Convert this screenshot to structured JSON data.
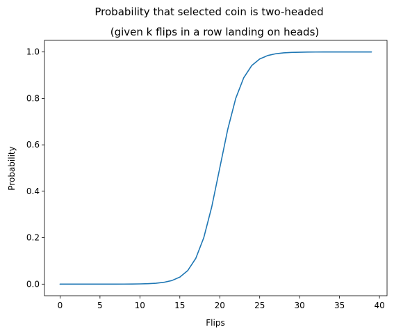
{
  "chart_data": {
    "type": "line",
    "title": "Probability that selected coin is two-headed",
    "subtitle": "(given k flips in a row landing on heads)",
    "xlabel": "Flips",
    "ylabel": "Probability",
    "xlim": [
      -1.95,
      40.95
    ],
    "ylim": [
      -0.05,
      1.05
    ],
    "xticks": [
      0,
      5,
      10,
      15,
      20,
      25,
      30,
      35,
      40
    ],
    "yticks": [
      0.0,
      0.2,
      0.4,
      0.6,
      0.8,
      1.0
    ],
    "xtick_labels": [
      "0",
      "5",
      "10",
      "15",
      "20",
      "25",
      "30",
      "35",
      "40"
    ],
    "ytick_labels": [
      "0.0",
      "0.2",
      "0.4",
      "0.6",
      "0.8",
      "1.0"
    ],
    "grid": false,
    "legend": false,
    "series": [
      {
        "color": "#1f77b4",
        "x": [
          0,
          1,
          2,
          3,
          4,
          5,
          6,
          7,
          8,
          9,
          10,
          11,
          12,
          13,
          14,
          15,
          16,
          17,
          18,
          19,
          20,
          21,
          22,
          23,
          24,
          25,
          26,
          27,
          28,
          29,
          30,
          31,
          32,
          33,
          34,
          35,
          36,
          37,
          38,
          39
        ],
        "y": [
          1e-06,
          2e-06,
          4e-06,
          8e-06,
          1.5e-05,
          3e-05,
          6e-05,
          0.00012,
          0.00024,
          0.00049,
          0.00098,
          0.00195,
          0.0039,
          0.0078,
          0.0154,
          0.0303,
          0.0588,
          0.1111,
          0.2,
          0.3333,
          0.5,
          0.6667,
          0.8,
          0.8889,
          0.9412,
          0.9697,
          0.9846,
          0.9922,
          0.9961,
          0.998,
          0.999,
          0.9995,
          0.9998,
          0.9999,
          0.99994,
          0.99997,
          0.99998,
          0.99999,
          0.999996,
          0.999998
        ]
      }
    ]
  }
}
